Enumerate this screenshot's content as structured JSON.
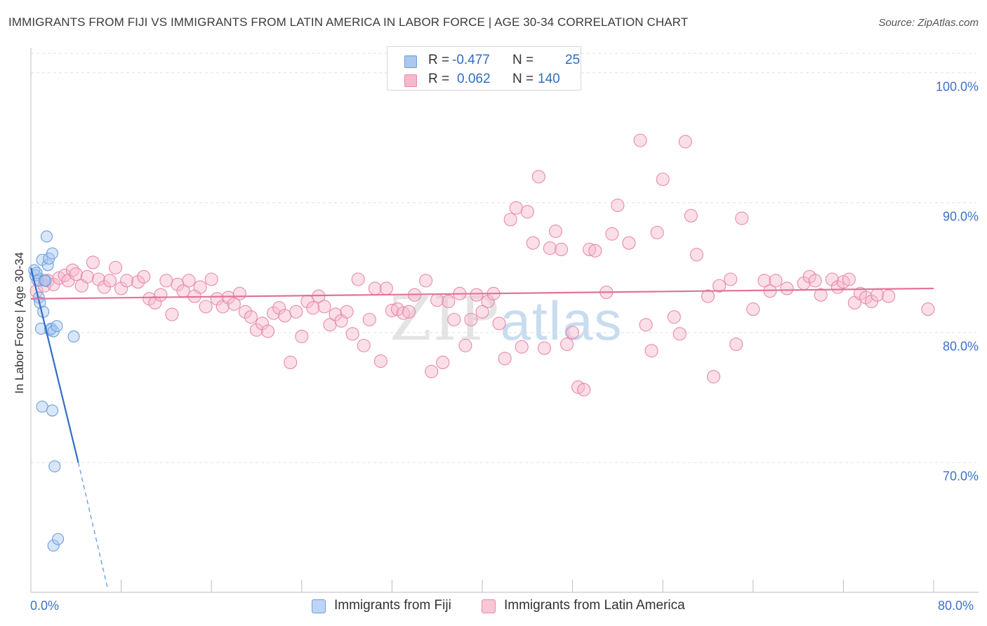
{
  "title": "IMMIGRANTS FROM FIJI VS IMMIGRANTS FROM LATIN AMERICA IN LABOR FORCE | AGE 30-34 CORRELATION CHART",
  "source": "Source: ZipAtlas.com",
  "watermark": {
    "zip": "ZIP",
    "atlas": "atlas"
  },
  "legend": {
    "rows": [
      {
        "r_label": "R =",
        "r_value": "-0.477",
        "n_label": "N =",
        "n_value": "25",
        "color": "#a9c8f0",
        "border": "#6a9ee0"
      },
      {
        "r_label": "R =",
        "r_value": "0.062",
        "n_label": "N =",
        "n_value": "140",
        "color": "#f6b8cb",
        "border": "#e88aa8"
      }
    ]
  },
  "bottom_legend": [
    {
      "label": "Immigrants from Fiji",
      "color": "#bcd5f5",
      "border": "#6a9ee0"
    },
    {
      "label": "Immigrants from Latin America",
      "color": "#f9c6d6",
      "border": "#e88aa8"
    }
  ],
  "chart_data": {
    "type": "scatter",
    "title": "IMMIGRANTS FROM FIJI VS IMMIGRANTS FROM LATIN AMERICA IN LABOR FORCE | AGE 30-34 CORRELATION CHART",
    "xlabel": "",
    "ylabel": "In Labor Force | Age 30-34",
    "xlim": [
      0,
      80
    ],
    "ylim": [
      60,
      101.5
    ],
    "x_tick_labels": [
      "0.0%",
      "80.0%"
    ],
    "y_ticks": [
      70,
      80,
      90,
      100
    ],
    "y_tick_labels": [
      "70.0%",
      "80.0%",
      "90.0%",
      "100.0%"
    ],
    "grid": true,
    "legend_position": "top-center",
    "series": [
      {
        "name": "Immigrants from Fiji",
        "color": "#6a9ee0",
        "fill": "#a9c8f0",
        "x": [
          0.3,
          0.4,
          0.5,
          0.6,
          0.7,
          0.8,
          1.0,
          1.1,
          1.2,
          1.3,
          1.4,
          1.5,
          1.6,
          1.7,
          1.8,
          1.9,
          2.0,
          2.3,
          3.8,
          1.0,
          1.9,
          2.1,
          2.0,
          2.4,
          0.9
        ],
        "y": [
          84.8,
          84.4,
          84.6,
          84.0,
          82.7,
          82.3,
          85.6,
          81.6,
          84.0,
          84.0,
          87.4,
          85.2,
          85.7,
          80.2,
          80.3,
          86.1,
          80.1,
          80.5,
          79.7,
          74.3,
          74.0,
          69.7,
          63.6,
          64.1,
          80.3
        ],
        "trend": {
          "x0": 0.0,
          "y0": 85.0,
          "x1": 4.2,
          "y1": 70.0,
          "dashed_to_x": 6.8,
          "dashed_to_y": 60.3
        }
      },
      {
        "name": "Immigrants from Latin America",
        "color": "#e88aa8",
        "fill": "#f6b8cb",
        "x": [
          0.5,
          0.8,
          1.2,
          1.5,
          2.0,
          2.5,
          3.0,
          3.3,
          3.7,
          4.0,
          4.5,
          5.0,
          5.5,
          6.0,
          6.5,
          7.0,
          7.5,
          8.0,
          8.5,
          9.5,
          10.0,
          10.5,
          11.0,
          11.5,
          12.0,
          12.5,
          13.0,
          13.5,
          14.0,
          14.5,
          15.0,
          15.5,
          16.0,
          16.5,
          17.0,
          17.5,
          18.0,
          18.5,
          19.0,
          19.5,
          20.0,
          20.5,
          21.0,
          21.5,
          22.0,
          22.5,
          23.0,
          23.5,
          24.0,
          24.5,
          25.0,
          25.5,
          26.0,
          26.5,
          27.0,
          27.5,
          28.0,
          28.5,
          29.0,
          29.5,
          30.0,
          30.5,
          31.0,
          31.5,
          32.0,
          32.5,
          33.0,
          33.5,
          34.0,
          35.0,
          35.5,
          36.0,
          36.5,
          37.0,
          37.5,
          38.0,
          38.5,
          39.0,
          39.5,
          40.0,
          40.5,
          41.0,
          41.5,
          42.0,
          42.5,
          43.0,
          43.5,
          44.0,
          44.5,
          45.0,
          45.5,
          46.0,
          46.5,
          47.0,
          47.5,
          48.0,
          48.5,
          49.0,
          49.5,
          50.0,
          51.0,
          51.5,
          52.0,
          53.0,
          54.0,
          54.5,
          55.0,
          55.5,
          56.0,
          57.0,
          57.5,
          58.0,
          58.5,
          59.0,
          60.0,
          60.5,
          61.0,
          62.0,
          62.5,
          63.0,
          64.0,
          65.0,
          65.5,
          66.0,
          67.0,
          68.5,
          69.0,
          69.5,
          70.0,
          71.0,
          71.5,
          72.0,
          72.5,
          73.0,
          73.5,
          74.0,
          74.5,
          75.0,
          76.0,
          79.5
        ],
        "y": [
          83.2,
          84.1,
          83.6,
          84.0,
          83.7,
          84.2,
          84.4,
          84.0,
          84.8,
          84.5,
          83.6,
          84.3,
          85.4,
          84.1,
          83.5,
          84.0,
          85.0,
          83.4,
          84.0,
          83.9,
          84.3,
          82.6,
          82.3,
          82.9,
          84.0,
          81.4,
          83.7,
          83.2,
          84.0,
          82.8,
          83.5,
          82.0,
          84.1,
          82.6,
          82.0,
          82.7,
          82.2,
          83.0,
          81.6,
          81.2,
          80.2,
          80.7,
          80.1,
          81.5,
          81.9,
          81.3,
          77.7,
          81.6,
          79.7,
          82.4,
          81.9,
          82.8,
          82.0,
          80.6,
          81.4,
          80.9,
          81.6,
          79.9,
          84.1,
          79.0,
          81.0,
          83.4,
          77.8,
          83.4,
          81.7,
          81.8,
          81.5,
          81.6,
          82.9,
          84.0,
          77.0,
          82.5,
          77.7,
          82.4,
          81.0,
          83.0,
          79.0,
          81.0,
          82.9,
          81.6,
          82.4,
          83.0,
          80.7,
          78.0,
          88.7,
          89.6,
          78.9,
          89.3,
          86.9,
          92.0,
          78.8,
          86.5,
          87.8,
          86.4,
          79.1,
          80.0,
          75.8,
          75.6,
          86.4,
          86.3,
          83.1,
          87.6,
          89.8,
          86.9,
          94.8,
          80.6,
          78.6,
          87.7,
          91.8,
          81.2,
          79.9,
          94.7,
          89.0,
          86.0,
          82.8,
          76.6,
          83.6,
          84.1,
          79.1,
          88.8,
          81.8,
          84.0,
          83.2,
          84.0,
          83.4,
          83.8,
          84.3,
          84.0,
          82.9,
          84.1,
          83.5,
          83.9,
          84.1,
          82.3,
          83.0,
          82.7,
          82.4,
          82.9,
          82.8,
          81.8
        ],
        "trend": {
          "x0": 0.0,
          "y0": 82.6,
          "x1": 80.0,
          "y1": 83.4
        }
      }
    ]
  }
}
